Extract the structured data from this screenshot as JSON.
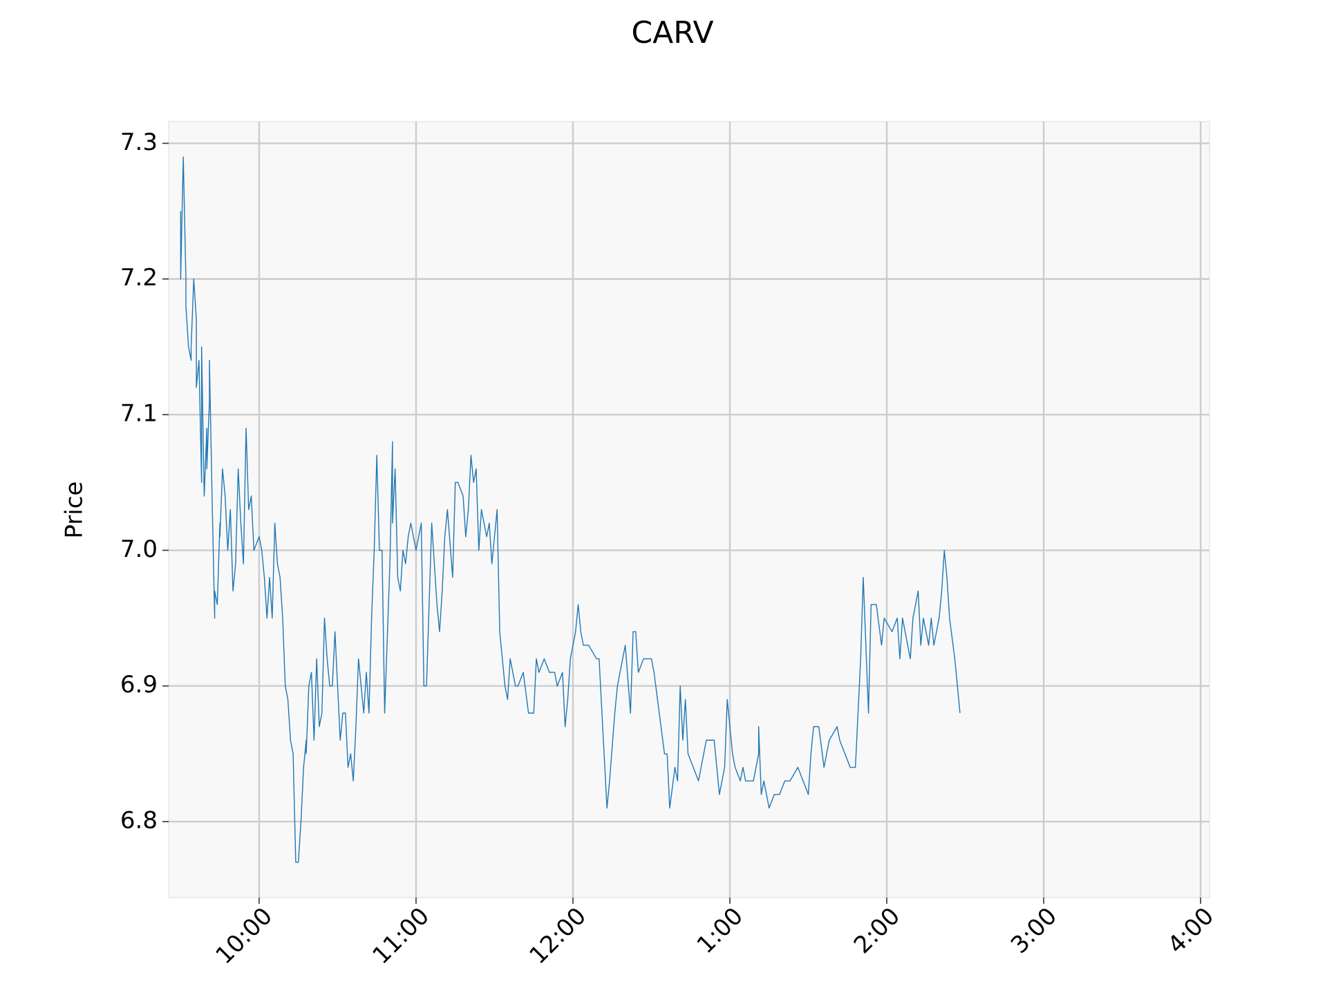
{
  "chart_data": {
    "type": "line",
    "title": "CARV",
    "y_label": "Price",
    "x": [
      570,
      570,
      571,
      572,
      572,
      573,
      574,
      574,
      575,
      576,
      576,
      577,
      578,
      578,
      579,
      580,
      580,
      581,
      581,
      582,
      583,
      583,
      584,
      585,
      585,
      586,
      587,
      588,
      589,
      590,
      591,
      592,
      593,
      594,
      595,
      596,
      597,
      598,
      600,
      601,
      602,
      603,
      604,
      605,
      606,
      607,
      608,
      609,
      610,
      611,
      612,
      613,
      614,
      615,
      616,
      617,
      618,
      618,
      619,
      620,
      621,
      622,
      623,
      624,
      625,
      626,
      627,
      628,
      629,
      630,
      631,
      632,
      633,
      634,
      635,
      636,
      637,
      638,
      639,
      640,
      641,
      642,
      643,
      644,
      645,
      646,
      647,
      648,
      650,
      651,
      651,
      652,
      653,
      654,
      655,
      656,
      657,
      658,
      660,
      662,
      663,
      664,
      665,
      666,
      667,
      668,
      669,
      670,
      671,
      672,
      674,
      675,
      676,
      678,
      679,
      680,
      681,
      682,
      683,
      684,
      685,
      687,
      688,
      689,
      691,
      692,
      693,
      694,
      695,
      696,
      698,
      699,
      701,
      703,
      705,
      706,
      707,
      709,
      711,
      713,
      714,
      716,
      717,
      718,
      719,
      721,
      722,
      723,
      724,
      726,
      729,
      730,
      733,
      734,
      736,
      737,
      740,
      742,
      743,
      744,
      745,
      747,
      750,
      751,
      753,
      755,
      756,
      757,
      759,
      760,
      761,
      762,
      763,
      764,
      766,
      768,
      770,
      771,
      774,
      776,
      778,
      779,
      781,
      782,
      784,
      785,
      786,
      789,
      791,
      791,
      792,
      793,
      795,
      797,
      799,
      801,
      803,
      806,
      810,
      811,
      812,
      814,
      816,
      818,
      821,
      822,
      826,
      828,
      830,
      831,
      833,
      834,
      836,
      838,
      839,
      842,
      844,
      845,
      846,
      848,
      849,
      850,
      852,
      853,
      854,
      856,
      857,
      858,
      860,
      861,
      862,
      863,
      864,
      866,
      868
    ],
    "series": [
      {
        "name": "CARV",
        "color": "#1f77b4",
        "values": [
          7.25,
          7.2,
          7.29,
          7.2,
          7.18,
          7.15,
          7.14,
          7.15,
          7.2,
          7.17,
          7.12,
          7.14,
          7.05,
          7.15,
          7.04,
          7.09,
          7.06,
          7.11,
          7.14,
          7.04,
          6.95,
          6.97,
          6.96,
          7.02,
          7.01,
          7.06,
          7.04,
          7.0,
          7.03,
          6.97,
          6.99,
          7.06,
          7.02,
          6.99,
          7.09,
          7.03,
          7.04,
          7.0,
          7.01,
          7.0,
          6.98,
          6.95,
          6.98,
          6.95,
          7.02,
          6.99,
          6.98,
          6.95,
          6.9,
          6.89,
          6.86,
          6.85,
          6.77,
          6.77,
          6.8,
          6.84,
          6.86,
          6.85,
          6.9,
          6.91,
          6.86,
          6.92,
          6.87,
          6.88,
          6.95,
          6.92,
          6.9,
          6.9,
          6.94,
          6.9,
          6.86,
          6.88,
          6.88,
          6.84,
          6.85,
          6.83,
          6.87,
          6.92,
          6.9,
          6.88,
          6.91,
          6.88,
          6.95,
          7.0,
          7.07,
          7.0,
          7.0,
          6.88,
          6.99,
          7.08,
          7.02,
          7.06,
          6.98,
          6.97,
          7.0,
          6.99,
          7.01,
          7.02,
          7.0,
          7.02,
          6.9,
          6.9,
          6.96,
          7.02,
          6.99,
          6.96,
          6.94,
          6.97,
          7.01,
          7.03,
          6.98,
          7.05,
          7.05,
          7.04,
          7.01,
          7.03,
          7.07,
          7.05,
          7.06,
          7.0,
          7.03,
          7.01,
          7.02,
          6.99,
          7.03,
          6.94,
          6.92,
          6.9,
          6.89,
          6.92,
          6.9,
          6.9,
          6.91,
          6.88,
          6.88,
          6.92,
          6.91,
          6.92,
          6.91,
          6.91,
          6.9,
          6.91,
          6.87,
          6.89,
          6.92,
          6.94,
          6.96,
          6.94,
          6.93,
          6.93,
          6.92,
          6.92,
          6.81,
          6.83,
          6.88,
          6.9,
          6.93,
          6.88,
          6.94,
          6.94,
          6.91,
          6.92,
          6.92,
          6.91,
          6.88,
          6.85,
          6.85,
          6.81,
          6.84,
          6.83,
          6.9,
          6.86,
          6.89,
          6.85,
          6.84,
          6.83,
          6.85,
          6.86,
          6.86,
          6.82,
          6.84,
          6.89,
          6.85,
          6.84,
          6.83,
          6.84,
          6.83,
          6.83,
          6.85,
          6.87,
          6.82,
          6.83,
          6.81,
          6.82,
          6.82,
          6.83,
          6.83,
          6.84,
          6.82,
          6.85,
          6.87,
          6.87,
          6.84,
          6.86,
          6.87,
          6.86,
          6.84,
          6.84,
          6.92,
          6.98,
          6.88,
          6.96,
          6.96,
          6.93,
          6.95,
          6.94,
          6.95,
          6.92,
          6.95,
          6.93,
          6.92,
          6.95,
          6.97,
          6.93,
          6.95,
          6.93,
          6.95,
          6.93,
          6.95,
          6.97,
          7.0,
          6.98,
          6.95,
          6.92,
          6.88
        ]
      }
    ],
    "xlim": [
      565.4,
      963.4
    ],
    "xticks": [
      {
        "value": 600,
        "label": "10:00"
      },
      {
        "value": 660,
        "label": "11:00"
      },
      {
        "value": 720,
        "label": "12:00"
      },
      {
        "value": 780,
        "label": "1:00"
      },
      {
        "value": 840,
        "label": "2:00"
      },
      {
        "value": 900,
        "label": "3:00"
      },
      {
        "value": 960,
        "label": "4:00"
      }
    ],
    "ylim": [
      6.744,
      7.316
    ],
    "yticks": [
      {
        "value": 6.8,
        "label": "6.8"
      },
      {
        "value": 6.9,
        "label": "6.9"
      },
      {
        "value": 7.0,
        "label": "7.0"
      },
      {
        "value": 7.1,
        "label": "7.1"
      },
      {
        "value": 7.2,
        "label": "7.2"
      },
      {
        "value": 7.3,
        "label": "7.3"
      }
    ],
    "grid": true
  }
}
